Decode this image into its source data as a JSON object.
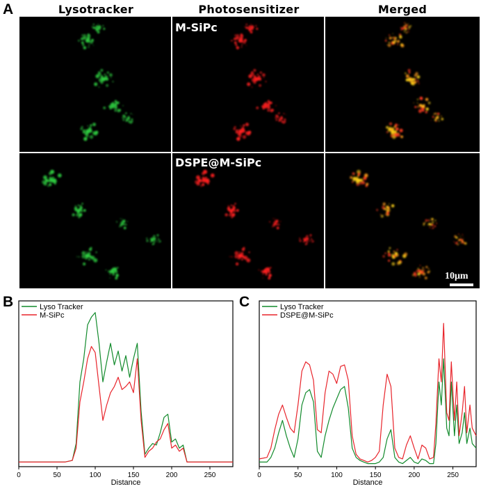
{
  "figure": {
    "panel_labels": {
      "a": "A",
      "b": "B",
      "c": "C"
    },
    "column_headers": [
      "Lysotracker",
      "Photosensitizer",
      "Merged"
    ],
    "row_labels": [
      "M-SiPc",
      "DSPE@M-SiPc"
    ],
    "scale_bar_label": "10μm",
    "channel_colors": {
      "lyso": "#2ecc40",
      "photo": "#ff2020",
      "merged": "#ffd21a"
    }
  },
  "chart_data": [
    {
      "type": "line",
      "panel": "B",
      "title": "",
      "xlabel": "Distance",
      "ylabel": "",
      "xlim": [
        0,
        280
      ],
      "ylim": [
        0,
        1
      ],
      "xticks": [
        0,
        50,
        100,
        150,
        200,
        250
      ],
      "legend_position": "top-left",
      "x": [
        0,
        60,
        70,
        75,
        80,
        85,
        90,
        95,
        100,
        105,
        110,
        115,
        120,
        125,
        130,
        135,
        140,
        145,
        150,
        155,
        160,
        165,
        170,
        175,
        180,
        185,
        190,
        195,
        200,
        205,
        210,
        215,
        220,
        230,
        280
      ],
      "series": [
        {
          "name": "Lyso Tracker",
          "color": "#118a2b",
          "values": [
            0.03,
            0.03,
            0.04,
            0.15,
            0.55,
            0.7,
            0.92,
            0.97,
            1.0,
            0.8,
            0.55,
            0.68,
            0.8,
            0.66,
            0.75,
            0.62,
            0.72,
            0.58,
            0.7,
            0.8,
            0.36,
            0.08,
            0.12,
            0.15,
            0.14,
            0.22,
            0.32,
            0.34,
            0.16,
            0.18,
            0.12,
            0.14,
            0.03,
            0.03,
            0.03
          ]
        },
        {
          "name": "M-SiPc",
          "color": "#e8232a",
          "values": [
            0.03,
            0.03,
            0.04,
            0.12,
            0.42,
            0.55,
            0.7,
            0.78,
            0.74,
            0.52,
            0.3,
            0.4,
            0.48,
            0.52,
            0.58,
            0.5,
            0.52,
            0.55,
            0.48,
            0.7,
            0.3,
            0.06,
            0.1,
            0.12,
            0.16,
            0.18,
            0.24,
            0.28,
            0.12,
            0.14,
            0.1,
            0.12,
            0.03,
            0.03,
            0.03
          ]
        }
      ]
    },
    {
      "type": "line",
      "panel": "C",
      "title": "",
      "xlabel": "Distance",
      "ylabel": "",
      "xlim": [
        0,
        280
      ],
      "ylim": [
        0,
        1
      ],
      "xticks": [
        0,
        50,
        100,
        150,
        200,
        250
      ],
      "legend_position": "top-left",
      "x": [
        0,
        10,
        15,
        20,
        25,
        30,
        35,
        40,
        45,
        50,
        55,
        60,
        65,
        70,
        75,
        80,
        85,
        90,
        95,
        100,
        105,
        110,
        115,
        120,
        125,
        130,
        135,
        140,
        145,
        150,
        155,
        160,
        165,
        170,
        175,
        180,
        185,
        190,
        195,
        200,
        205,
        210,
        215,
        220,
        225,
        228,
        232,
        235,
        238,
        242,
        245,
        248,
        252,
        255,
        258,
        262,
        265,
        268,
        272,
        275,
        280
      ],
      "series": [
        {
          "name": "Lyso Tracker",
          "color": "#118a2b",
          "values": [
            0.03,
            0.03,
            0.06,
            0.12,
            0.22,
            0.3,
            0.2,
            0.12,
            0.06,
            0.18,
            0.4,
            0.48,
            0.5,
            0.42,
            0.1,
            0.06,
            0.2,
            0.3,
            0.38,
            0.44,
            0.5,
            0.52,
            0.38,
            0.12,
            0.06,
            0.04,
            0.03,
            0.02,
            0.02,
            0.02,
            0.03,
            0.06,
            0.18,
            0.24,
            0.06,
            0.03,
            0.02,
            0.04,
            0.06,
            0.03,
            0.02,
            0.05,
            0.04,
            0.02,
            0.02,
            0.15,
            0.55,
            0.4,
            0.7,
            0.25,
            0.2,
            0.55,
            0.2,
            0.4,
            0.15,
            0.22,
            0.35,
            0.15,
            0.25,
            0.15,
            0.12
          ]
        },
        {
          "name": "DSPE@M-SiPc",
          "color": "#e8232a",
          "values": [
            0.05,
            0.06,
            0.12,
            0.24,
            0.34,
            0.4,
            0.32,
            0.25,
            0.22,
            0.4,
            0.62,
            0.68,
            0.66,
            0.56,
            0.24,
            0.22,
            0.48,
            0.62,
            0.6,
            0.54,
            0.65,
            0.66,
            0.56,
            0.2,
            0.08,
            0.05,
            0.04,
            0.03,
            0.04,
            0.06,
            0.1,
            0.4,
            0.6,
            0.52,
            0.12,
            0.06,
            0.05,
            0.14,
            0.2,
            0.12,
            0.05,
            0.14,
            0.12,
            0.05,
            0.06,
            0.28,
            0.7,
            0.55,
            0.93,
            0.35,
            0.3,
            0.68,
            0.3,
            0.55,
            0.2,
            0.35,
            0.52,
            0.22,
            0.4,
            0.25,
            0.2
          ]
        }
      ]
    }
  ]
}
